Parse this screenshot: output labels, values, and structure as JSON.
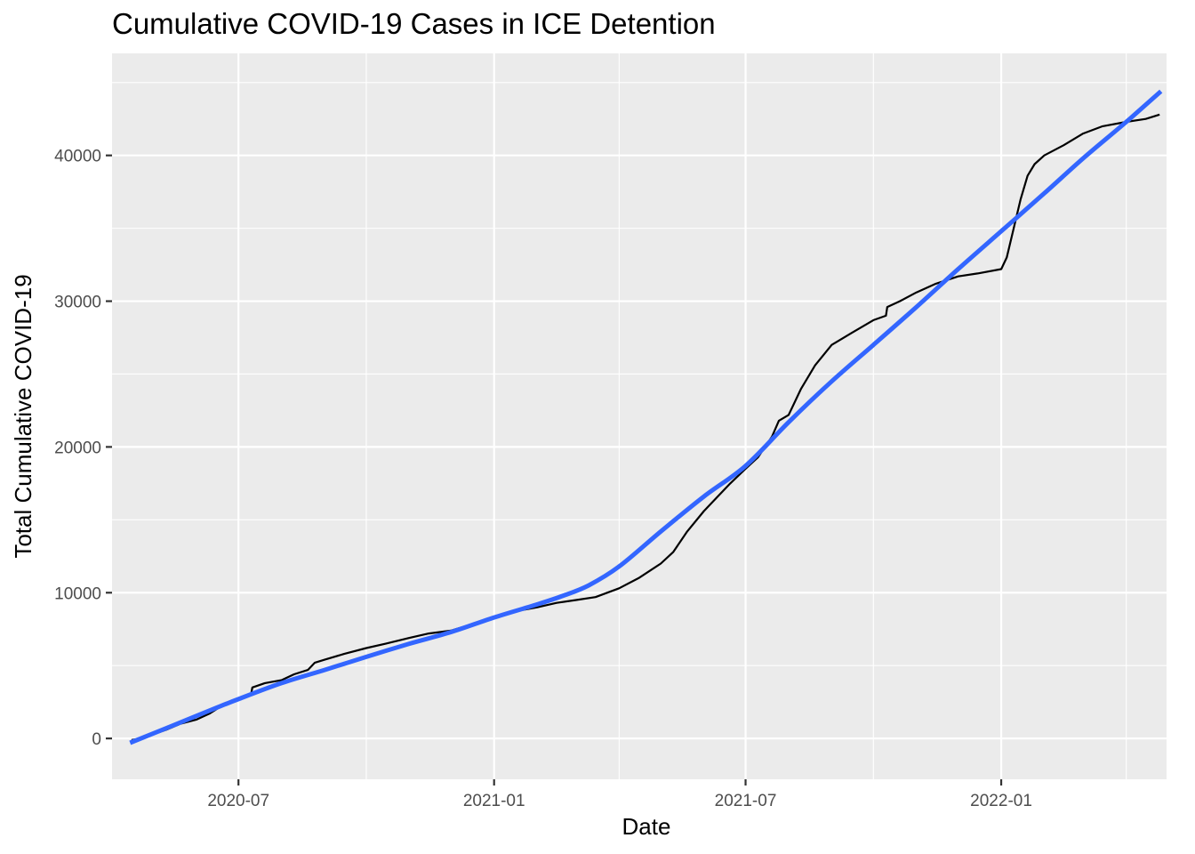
{
  "chart_data": {
    "type": "line",
    "title": "Cumulative COVID-19 Cases in ICE Detention",
    "xlabel": "Date",
    "ylabel": "Total Cumulative COVID-19",
    "xlim": [
      "2020-04-01",
      "2022-04-30"
    ],
    "ylim": [
      -2800,
      47000
    ],
    "x_ticks": [
      "2020-07-01",
      "2021-01-01",
      "2021-07-01",
      "2022-01-01"
    ],
    "x_tick_labels": [
      "2020-07",
      "2021-01",
      "2021-07",
      "2022-01"
    ],
    "x_minor_ticks": [
      "2020-10-01",
      "2021-04-01",
      "2021-10-01",
      "2022-04-01"
    ],
    "y_ticks": [
      0,
      10000,
      20000,
      30000,
      40000
    ],
    "y_tick_labels": [
      "0",
      "10000",
      "20000",
      "30000",
      "40000"
    ],
    "y_minor_ticks": [
      5000,
      15000,
      25000,
      35000,
      45000
    ],
    "grid": true,
    "legend": "none",
    "background": "#ebebeb",
    "gridline_color": "#ffffff",
    "series": [
      {
        "style": "line",
        "color": "#000000",
        "x": [
          "2020-04-15",
          "2020-04-22",
          "2020-05-01",
          "2020-05-10",
          "2020-05-20",
          "2020-06-01",
          "2020-06-10",
          "2020-06-20",
          "2020-06-30",
          "2020-07-10",
          "2020-07-11",
          "2020-07-20",
          "2020-08-01",
          "2020-08-10",
          "2020-08-20",
          "2020-08-25",
          "2020-09-01",
          "2020-09-15",
          "2020-10-01",
          "2020-10-15",
          "2020-11-01",
          "2020-11-15",
          "2020-12-01",
          "2020-12-15",
          "2021-01-01",
          "2021-01-15",
          "2021-02-01",
          "2021-02-15",
          "2021-03-01",
          "2021-03-15",
          "2021-04-01",
          "2021-04-15",
          "2021-05-01",
          "2021-05-10",
          "2021-05-20",
          "2021-06-01",
          "2021-06-10",
          "2021-06-20",
          "2021-07-01",
          "2021-07-10",
          "2021-07-20",
          "2021-07-25",
          "2021-08-01",
          "2021-08-10",
          "2021-08-20",
          "2021-09-01",
          "2021-09-15",
          "2021-10-01",
          "2021-10-10",
          "2021-10-11",
          "2021-10-20",
          "2021-11-01",
          "2021-11-15",
          "2021-12-01",
          "2021-12-15",
          "2022-01-01",
          "2022-01-05",
          "2022-01-10",
          "2022-01-15",
          "2022-01-20",
          "2022-01-25",
          "2022-02-01",
          "2022-02-15",
          "2022-03-01",
          "2022-03-15",
          "2022-04-01",
          "2022-04-15",
          "2022-04-25"
        ],
        "y": [
          -100,
          0,
          300,
          600,
          1000,
          1300,
          1700,
          2300,
          2700,
          3000,
          3500,
          3800,
          4000,
          4400,
          4700,
          5200,
          5400,
          5800,
          6200,
          6500,
          6900,
          7200,
          7400,
          7800,
          8300,
          8700,
          9000,
          9300,
          9500,
          9700,
          10300,
          11000,
          12000,
          12800,
          14200,
          15600,
          16500,
          17500,
          18500,
          19300,
          20700,
          21800,
          22200,
          24000,
          25600,
          27000,
          27800,
          28700,
          29000,
          29600,
          30000,
          30600,
          31200,
          31700,
          31900,
          32200,
          33000,
          35000,
          37000,
          38600,
          39400,
          40000,
          40700,
          41500,
          42000,
          42300,
          42500,
          42800
        ]
      },
      {
        "style": "smooth",
        "color": "#3366ff",
        "x": [
          "2020-04-14",
          "2020-05-15",
          "2020-06-15",
          "2020-07-01",
          "2020-08-01",
          "2020-09-01",
          "2020-10-01",
          "2020-11-01",
          "2020-12-01",
          "2021-01-01",
          "2021-02-01",
          "2021-02-20",
          "2021-03-10",
          "2021-04-01",
          "2021-05-01",
          "2021-06-01",
          "2021-07-01",
          "2021-08-01",
          "2021-09-01",
          "2021-10-01",
          "2021-11-01",
          "2021-12-01",
          "2022-01-01",
          "2022-02-01",
          "2022-03-01",
          "2022-04-01",
          "2022-04-26"
        ],
        "y": [
          -300,
          900,
          2100,
          2700,
          3800,
          4700,
          5600,
          6500,
          7300,
          8300,
          9200,
          9800,
          10500,
          11800,
          14200,
          16600,
          18700,
          21700,
          24500,
          27000,
          29600,
          32200,
          34800,
          37400,
          39800,
          42300,
          44400
        ]
      }
    ]
  }
}
